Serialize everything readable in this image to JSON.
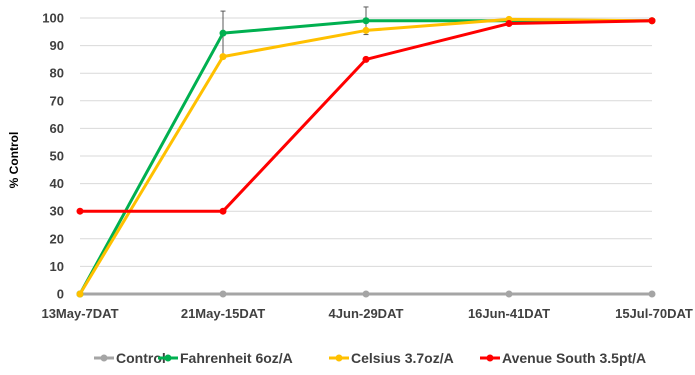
{
  "chart_data": {
    "type": "line",
    "categories": [
      "13May-7DAT",
      "21May-15DAT",
      "4Jun-29DAT",
      "16Jun-41DAT",
      "15Jul-70DAT"
    ],
    "ylabel": "% Control",
    "xlabel": "",
    "ylim": [
      0,
      100
    ],
    "yticks": [
      0,
      10,
      20,
      30,
      40,
      50,
      60,
      70,
      80,
      90,
      100
    ],
    "grid": true,
    "legend_position": "bottom",
    "series": [
      {
        "name": "Control",
        "color": "#a5a5a5",
        "values": [
          0,
          0,
          0,
          0,
          0
        ]
      },
      {
        "name": "Fahrenheit 6oz/A",
        "color": "#00b050",
        "values": [
          0,
          94.5,
          99,
          99,
          99
        ],
        "error": [
          null,
          8,
          5,
          null,
          null
        ]
      },
      {
        "name": "Celsius 3.7oz/A",
        "color": "#ffc000",
        "values": [
          0,
          86,
          95.5,
          99.5,
          99
        ]
      },
      {
        "name": "Avenue South 3.5pt/A",
        "color": "#ff0000",
        "values": [
          30,
          30,
          85,
          98,
          99
        ]
      }
    ]
  }
}
